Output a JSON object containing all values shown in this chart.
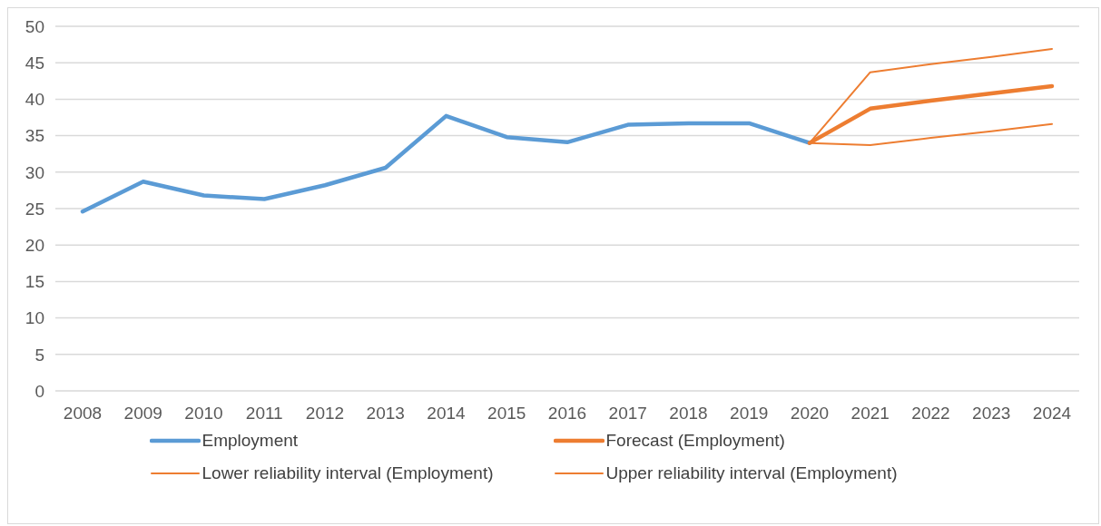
{
  "chart_data": {
    "type": "line",
    "categories": [
      "2008",
      "2009",
      "2010",
      "2011",
      "2012",
      "2013",
      "2014",
      "2015",
      "2016",
      "2017",
      "2018",
      "2019",
      "2020",
      "2021",
      "2022",
      "2023",
      "2024"
    ],
    "series": [
      {
        "name": "Employment",
        "color": "#5b9bd5",
        "values": [
          24.6,
          28.7,
          26.8,
          26.3,
          28.2,
          30.6,
          37.7,
          34.8,
          34.1,
          36.5,
          36.7,
          36.7,
          34.0,
          null,
          null,
          null,
          null
        ]
      },
      {
        "name": "Forecast (Employment)",
        "color": "#ed7d31",
        "values": [
          null,
          null,
          null,
          null,
          null,
          null,
          null,
          null,
          null,
          null,
          null,
          null,
          34.0,
          38.7,
          39.8,
          40.8,
          41.8
        ]
      },
      {
        "name": "Lower reliability interval (Employment)",
        "color": "#ed7d31",
        "values": [
          null,
          null,
          null,
          null,
          null,
          null,
          null,
          null,
          null,
          null,
          null,
          null,
          34.0,
          33.7,
          34.7,
          35.6,
          36.6
        ]
      },
      {
        "name": "Upper reliability interval (Employment)",
        "color": "#ed7d31",
        "values": [
          null,
          null,
          null,
          null,
          null,
          null,
          null,
          null,
          null,
          null,
          null,
          null,
          34.0,
          43.7,
          44.8,
          45.8,
          46.9
        ]
      }
    ],
    "ylim": [
      0,
      50
    ],
    "yticks": [
      0,
      5,
      10,
      15,
      20,
      25,
      30,
      35,
      40,
      45,
      50
    ],
    "grid": "y",
    "legend": "bottom",
    "marker": "none",
    "line_style": "solid"
  }
}
